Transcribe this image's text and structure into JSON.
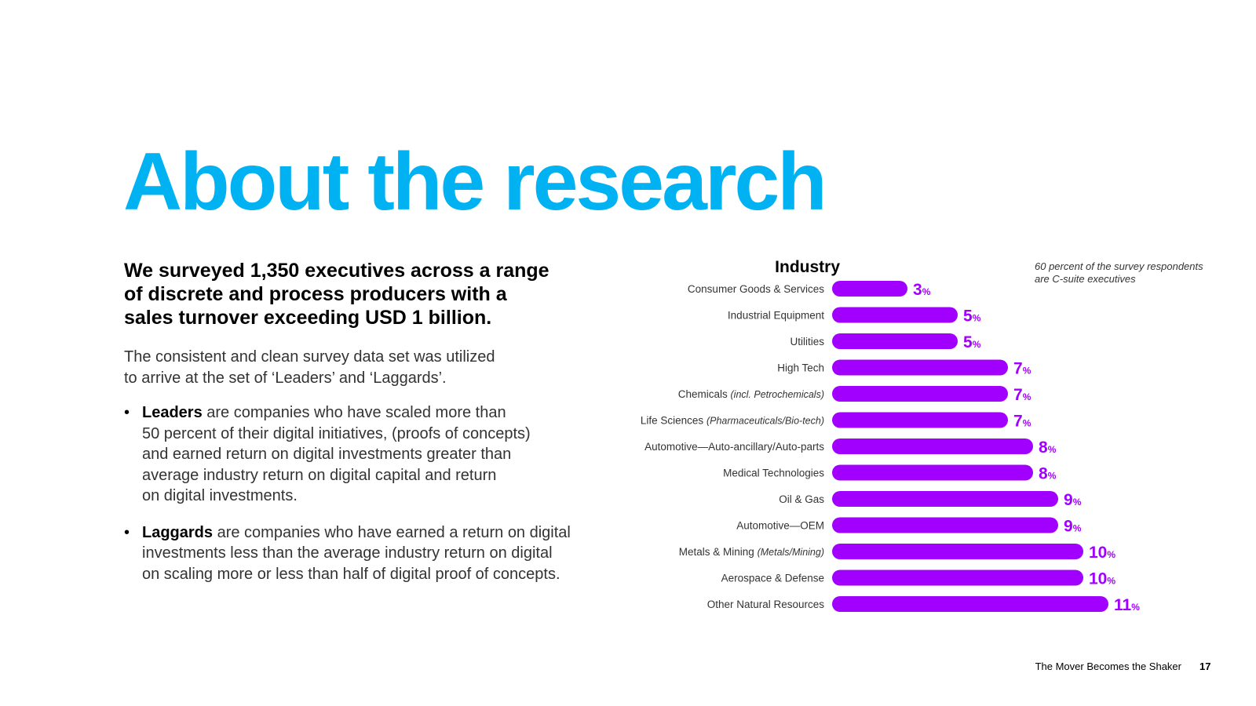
{
  "title": "About the research",
  "lead_lines": [
    "We surveyed 1,350 executives across a range",
    "of discrete and process producers with a",
    "sales turnover exceeding USD 1 billion."
  ],
  "intro_lines": [
    "The consistent and clean survey data set was utilized",
    "to arrive at the set of ‘Leaders’ and ‘Laggards’."
  ],
  "bullets": [
    {
      "bullet": "•",
      "term": "Leaders",
      "first_line": " are companies who have scaled more than",
      "lines": [
        "50 percent of their digital initiatives, (proofs of concepts)",
        "and earned return on digital investments greater than",
        "average industry return on digital capital and return",
        "on digital investments."
      ]
    },
    {
      "bullet": "•",
      "term": "Laggards",
      "first_line": " are companies who have earned a return on digital",
      "lines": [
        "investments less than the average industry return on digital",
        "on scaling more or less than half of digital proof of concepts."
      ]
    }
  ],
  "note_lines": [
    "60 percent of the survey respondents",
    "are C-suite executives"
  ],
  "footer": {
    "text": "The Mover Becomes the Shaker",
    "page": "17"
  },
  "colors": {
    "title": "#00b2f2",
    "bar": "#a100ff",
    "label": "#333333"
  },
  "chart_data": {
    "type": "bar",
    "orientation": "horizontal",
    "title": "Industry",
    "unit": "%",
    "categories": [
      {
        "name": "Consumer Goods & Services",
        "qualifier": ""
      },
      {
        "name": "Industrial Equipment",
        "qualifier": ""
      },
      {
        "name": "Utilities",
        "qualifier": ""
      },
      {
        "name": "High Tech",
        "qualifier": ""
      },
      {
        "name": "Chemicals ",
        "qualifier": "(incl. Petrochemicals)"
      },
      {
        "name": "Life Sciences ",
        "qualifier": "(Pharmaceuticals/Bio-tech)"
      },
      {
        "name": "Automotive—Auto-ancillary/Auto-parts",
        "qualifier": ""
      },
      {
        "name": "Medical Technologies",
        "qualifier": ""
      },
      {
        "name": "Oil & Gas",
        "qualifier": ""
      },
      {
        "name": "Automotive—OEM",
        "qualifier": ""
      },
      {
        "name": "Metals & Mining ",
        "qualifier": "(Metals/Mining)"
      },
      {
        "name": "Aerospace & Defense",
        "qualifier": ""
      },
      {
        "name": "Other Natural Resources",
        "qualifier": ""
      }
    ],
    "values": [
      3,
      5,
      5,
      7,
      7,
      7,
      8,
      8,
      9,
      9,
      10,
      10,
      11
    ],
    "xlim": [
      0,
      11
    ]
  }
}
